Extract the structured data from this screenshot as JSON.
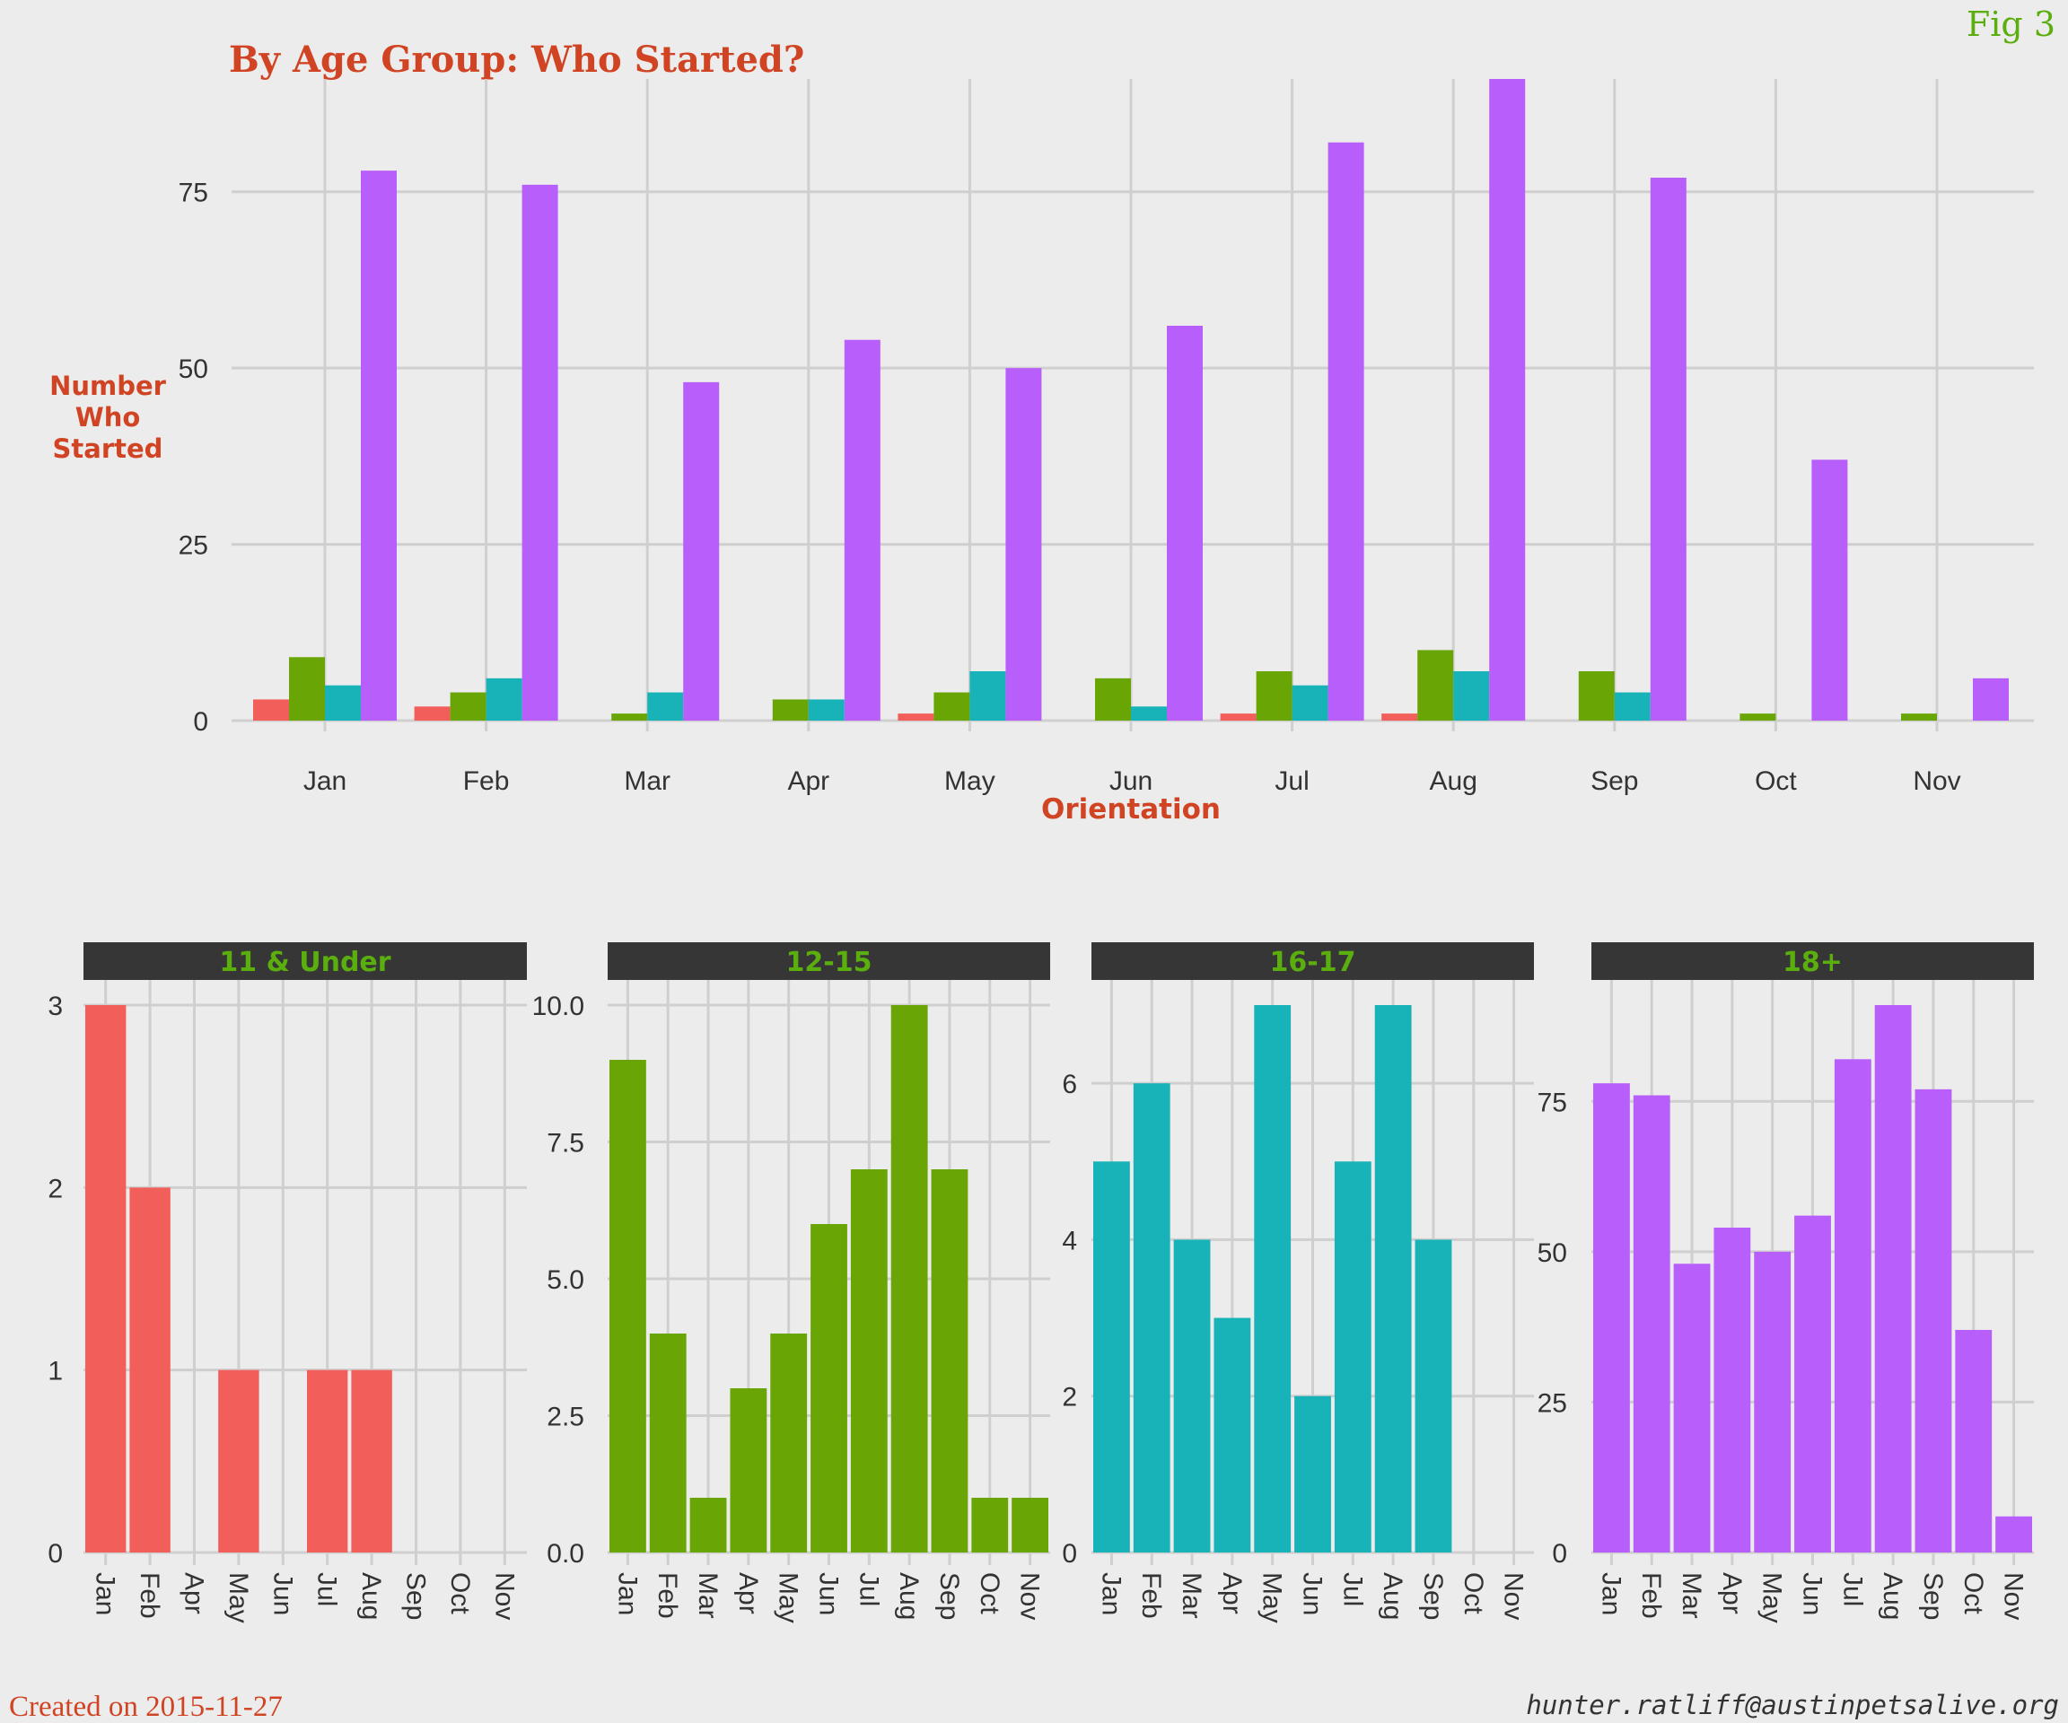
{
  "fig_label": "Fig 3",
  "footer": {
    "created": "Created on 2015-11-27",
    "email": "hunter.ratliff@austinpetsalive.org"
  },
  "colors": {
    "title": "#d04424",
    "fig": "#5aae0e",
    "strip_bg": "#363636",
    "strip_text": "#5aae0e",
    "grid": "#cfcfcf",
    "background": "#ececec"
  },
  "chart_data": [
    {
      "type": "bar",
      "layout": "grouped",
      "title": "By Age Group: Who Started?",
      "xlabel": "Orientation",
      "ylabel": "Number Who Started",
      "categories": [
        "Jan",
        "Feb",
        "Mar",
        "Apr",
        "May",
        "Jun",
        "Jul",
        "Aug",
        "Sep",
        "Oct",
        "Nov"
      ],
      "yticks": [
        0,
        25,
        50,
        75
      ],
      "ylim": [
        0,
        91
      ],
      "grid": true,
      "series": [
        {
          "color": "#f25e5a",
          "values": [
            3,
            2,
            0,
            0,
            1,
            0,
            1,
            1,
            0,
            0,
            0
          ]
        },
        {
          "color": "#6aa506",
          "values": [
            9,
            4,
            1,
            3,
            4,
            6,
            7,
            10,
            7,
            1,
            1
          ]
        },
        {
          "color": "#17b3b8",
          "values": [
            5,
            6,
            4,
            3,
            7,
            2,
            5,
            7,
            4,
            0,
            0
          ]
        },
        {
          "color": "#b85efa",
          "values": [
            78,
            76,
            48,
            54,
            50,
            56,
            82,
            91,
            77,
            37,
            6
          ]
        }
      ]
    },
    {
      "type": "bar",
      "title": "11 & Under",
      "color": "#f25e5a",
      "categories": [
        "Jan",
        "Feb",
        "Apr",
        "May",
        "Jun",
        "Jul",
        "Aug",
        "Sep",
        "Oct",
        "Nov"
      ],
      "values": [
        3,
        2,
        0,
        1,
        0,
        1,
        1,
        0,
        0,
        0
      ],
      "yticks": [
        "0",
        "1",
        "2",
        "3"
      ],
      "ylim": [
        0,
        3
      ],
      "grid": true
    },
    {
      "type": "bar",
      "title": "12-15",
      "color": "#6aa506",
      "categories": [
        "Jan",
        "Feb",
        "Mar",
        "Apr",
        "May",
        "Jun",
        "Jul",
        "Aug",
        "Sep",
        "Oct",
        "Nov"
      ],
      "values": [
        9,
        4,
        1,
        3,
        4,
        6,
        7,
        10,
        7,
        1,
        1
      ],
      "yticks": [
        "0.0",
        "2.5",
        "5.0",
        "7.5",
        "10.0"
      ],
      "ylim": [
        0,
        10
      ],
      "grid": true
    },
    {
      "type": "bar",
      "title": "16-17",
      "color": "#17b3b8",
      "categories": [
        "Jan",
        "Feb",
        "Mar",
        "Apr",
        "May",
        "Jun",
        "Jul",
        "Aug",
        "Sep",
        "Oct",
        "Nov"
      ],
      "values": [
        5,
        6,
        4,
        3,
        7,
        2,
        5,
        7,
        4,
        0,
        0
      ],
      "yticks": [
        "0",
        "2",
        "4",
        "6"
      ],
      "ylim": [
        0,
        7
      ],
      "grid": true
    },
    {
      "type": "bar",
      "title": "18+",
      "color": "#b85efa",
      "categories": [
        "Jan",
        "Feb",
        "Mar",
        "Apr",
        "May",
        "Jun",
        "Jul",
        "Aug",
        "Sep",
        "Oct",
        "Nov"
      ],
      "values": [
        78,
        76,
        48,
        54,
        50,
        56,
        82,
        91,
        77,
        37,
        6
      ],
      "yticks": [
        "0",
        "25",
        "50",
        "75"
      ],
      "ylim": [
        0,
        91
      ],
      "grid": true
    }
  ]
}
